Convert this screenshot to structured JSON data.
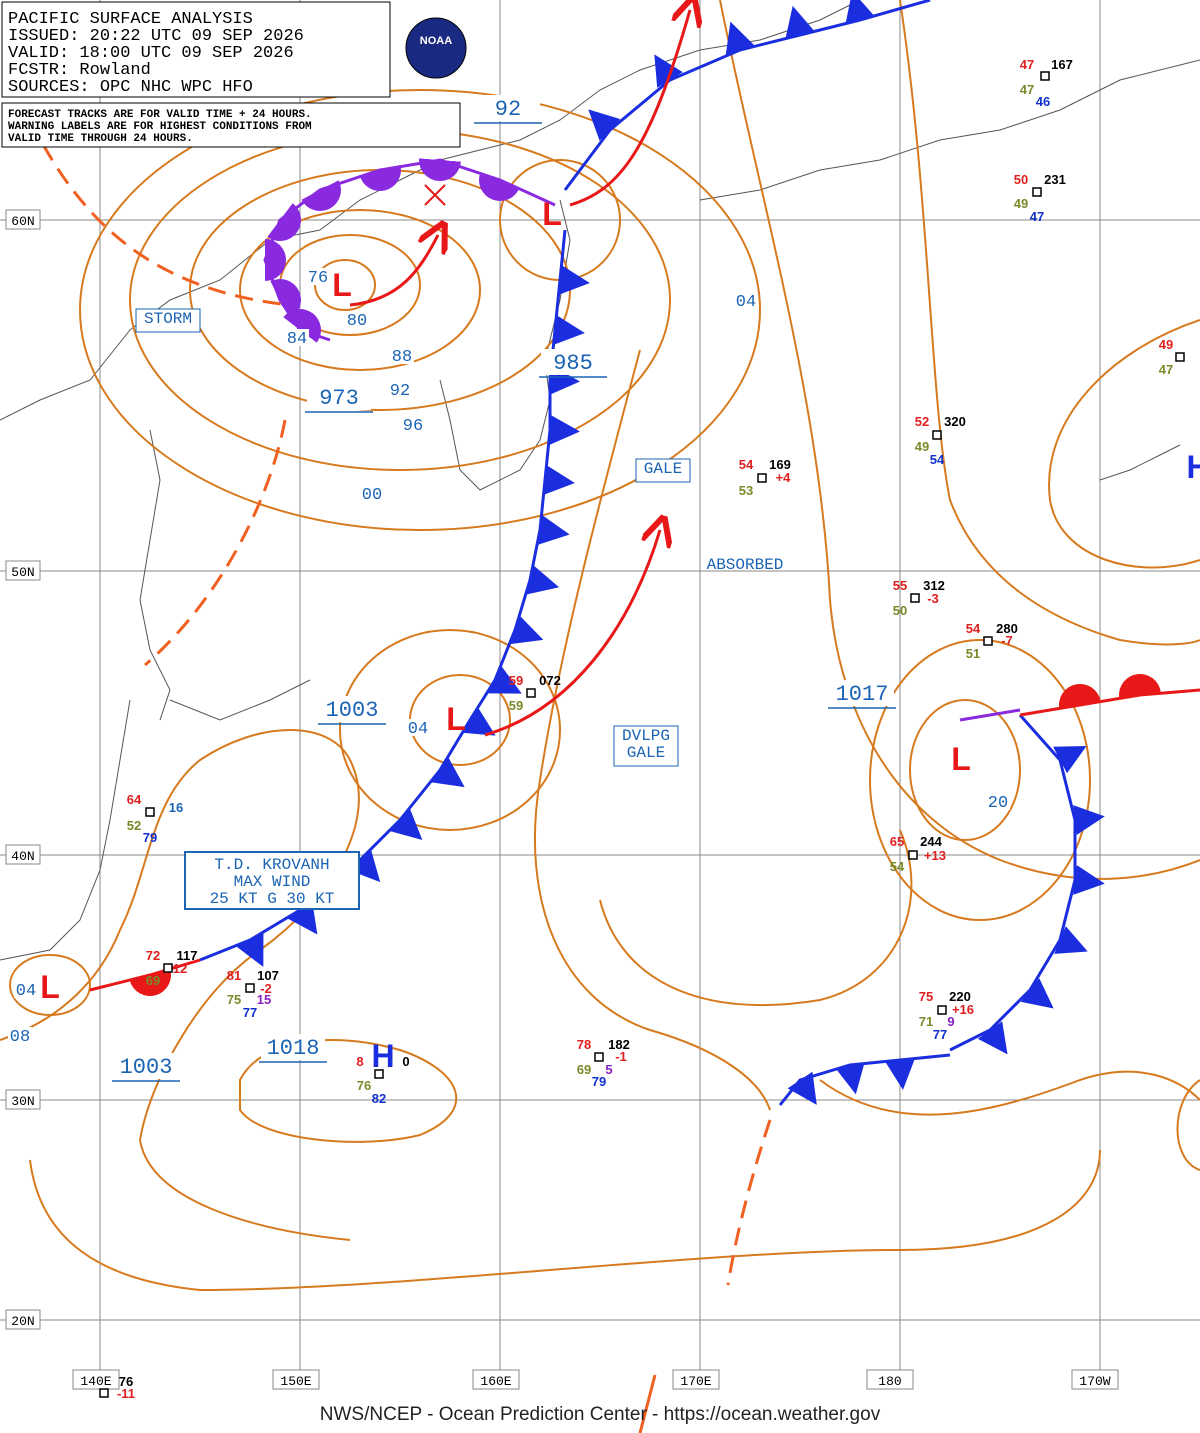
{
  "header": {
    "lines": [
      "PACIFIC SURFACE ANALYSIS",
      "ISSUED:  20:22 UTC 09 SEP 2026",
      "VALID:  18:00 UTC 09 SEP 2026",
      "FCSTR:  Rowland",
      "SOURCES:  OPC NHC WPC HFO"
    ],
    "logo": "NOAA"
  },
  "note": [
    "FORECAST TRACKS ARE FOR VALID TIME + 24 HOURS.",
    "WARNING LABELS ARE FOR HIGHEST CONDITIONS FROM",
    "VALID TIME THROUGH 24 HOURS."
  ],
  "latitudes": [
    "60N",
    "50N",
    "40N",
    "30N",
    "20N"
  ],
  "longitudes": [
    "140E",
    "150E",
    "160E",
    "170E",
    "180",
    "170W"
  ],
  "warnings": [
    [
      "STORM"
    ],
    [
      "GALE"
    ],
    [
      "ABSORBED"
    ],
    [
      "DVLPG",
      "GALE"
    ]
  ],
  "tropical_box": [
    "T.D. KROVANH",
    "MAX WIND",
    "25 KT G 30 KT"
  ],
  "centers": [
    "L",
    "L",
    "L",
    "L",
    "L",
    "H",
    "H"
  ],
  "isobar_labels_boxed": [
    "92",
    "985",
    "973",
    "1003",
    "1017",
    "1018",
    "1003"
  ],
  "isobar_labels": [
    "04",
    "00",
    "96",
    "92",
    "88",
    "80",
    "84",
    "76",
    "04",
    "20",
    "08",
    "04"
  ],
  "stations": [
    {
      "items": [
        {
          "text": "47",
          "color": "#e02020"
        },
        {
          "text": "167",
          "color": "#000000"
        },
        {
          "text": "47",
          "color": "#7a8a2a"
        },
        {
          "text": "46",
          "color": "#1030d0"
        }
      ]
    },
    {
      "items": [
        {
          "text": "50",
          "color": "#e02020"
        },
        {
          "text": "231",
          "color": "#000000"
        },
        {
          "text": "49",
          "color": "#7a8a2a"
        },
        {
          "text": "47",
          "color": "#1030d0"
        }
      ]
    },
    {
      "items": [
        {
          "text": "49",
          "color": "#e02020"
        },
        {
          "text": "47",
          "color": "#7a8a2a"
        }
      ]
    },
    {
      "items": [
        {
          "text": "52",
          "color": "#e02020"
        },
        {
          "text": "320",
          "color": "#000000"
        },
        {
          "text": "49",
          "color": "#7a8a2a"
        },
        {
          "text": "54",
          "color": "#1030d0"
        }
      ]
    },
    {
      "items": [
        {
          "text": "54",
          "color": "#e02020"
        },
        {
          "text": "169",
          "color": "#000000"
        },
        {
          "text": "53",
          "color": "#7a8a2a"
        },
        {
          "text": "+4",
          "color": "#e02020"
        }
      ]
    },
    {
      "items": [
        {
          "text": "55",
          "color": "#e02020"
        },
        {
          "text": "312",
          "color": "#000000"
        },
        {
          "text": "50",
          "color": "#7a8a2a"
        },
        {
          "text": "-3",
          "color": "#e02020"
        }
      ]
    },
    {
      "items": [
        {
          "text": "54",
          "color": "#e02020"
        },
        {
          "text": "280",
          "color": "#000000"
        },
        {
          "text": "51",
          "color": "#7a8a2a"
        },
        {
          "text": "-7",
          "color": "#e02020"
        }
      ]
    },
    {
      "items": [
        {
          "text": "59",
          "color": "#e02020"
        },
        {
          "text": "072",
          "color": "#000000"
        },
        {
          "text": "59",
          "color": "#7a8a2a"
        }
      ]
    },
    {
      "items": [
        {
          "text": "64",
          "color": "#e02020"
        },
        {
          "text": "16",
          "color": "#1b64b4"
        },
        {
          "text": "52",
          "color": "#7a8a2a"
        },
        {
          "text": "79",
          "color": "#1030d0"
        }
      ]
    },
    {
      "items": [
        {
          "text": "65",
          "color": "#e02020"
        },
        {
          "text": "244",
          "color": "#000000"
        },
        {
          "text": "54",
          "color": "#7a8a2a"
        },
        {
          "text": "+13",
          "color": "#e02020"
        }
      ]
    },
    {
      "items": [
        {
          "text": "72",
          "color": "#e02020"
        },
        {
          "text": "117",
          "color": "#000000"
        },
        {
          "text": "69",
          "color": "#7a8a2a"
        },
        {
          "text": "12",
          "color": "#e02020"
        }
      ]
    },
    {
      "items": [
        {
          "text": "81",
          "color": "#e02020"
        },
        {
          "text": "107",
          "color": "#000000"
        },
        {
          "text": "75",
          "color": "#7a8a2a"
        },
        {
          "text": "-2",
          "color": "#e02020"
        },
        {
          "text": "15",
          "color": "#8a20c0"
        },
        {
          "text": "77",
          "color": "#1030d0"
        }
      ]
    },
    {
      "items": [
        {
          "text": "75",
          "color": "#e02020"
        },
        {
          "text": "220",
          "color": "#000000"
        },
        {
          "text": "71",
          "color": "#7a8a2a"
        },
        {
          "text": "+16",
          "color": "#e02020"
        },
        {
          "text": "9",
          "color": "#8a20c0"
        },
        {
          "text": "77",
          "color": "#1030d0"
        }
      ]
    },
    {
      "items": [
        {
          "text": "78",
          "color": "#e02020"
        },
        {
          "text": "182",
          "color": "#000000"
        },
        {
          "text": "69",
          "color": "#7a8a2a"
        },
        {
          "text": "5",
          "color": "#8a20c0"
        },
        {
          "text": "79",
          "color": "#1030d0"
        },
        {
          "text": "-1",
          "color": "#e02020"
        }
      ]
    },
    {
      "items": [
        {
          "text": "8",
          "color": "#e02020"
        },
        {
          "text": "0",
          "color": "#000000"
        },
        {
          "text": "76",
          "color": "#7a8a2a"
        },
        {
          "text": "82",
          "color": "#1030d0"
        }
      ]
    },
    {
      "items": [
        {
          "text": "76",
          "color": "#000000"
        },
        {
          "text": "-11",
          "color": "#e02020"
        }
      ]
    }
  ],
  "footer": "NWS/NCEP - Ocean Prediction Center - https://ocean.weather.gov"
}
